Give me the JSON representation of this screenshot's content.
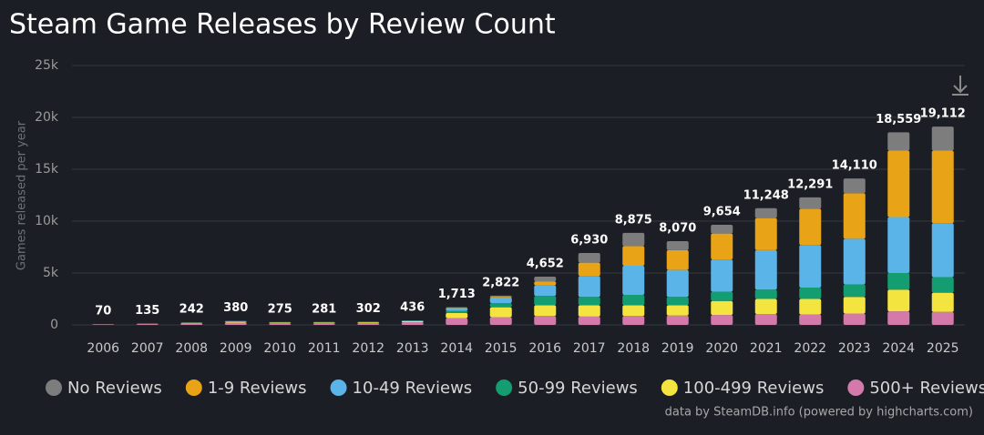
{
  "chart_data": {
    "type": "stacked-bar",
    "title": "Steam Game Releases by Review Count",
    "y_axis_label": "Games released per year",
    "credits": "data by SteamDB.info (powered by highcharts.com)",
    "categories": [
      "2006",
      "2007",
      "2008",
      "2009",
      "2010",
      "2011",
      "2012",
      "2013",
      "2014",
      "2015",
      "2016",
      "2017",
      "2018",
      "2019",
      "2020",
      "2021",
      "2022",
      "2023",
      "2024",
      "2025"
    ],
    "ylim": [
      0,
      25000
    ],
    "yticks": [
      0,
      {
        "value": 5000,
        "label": "5k"
      },
      {
        "value": 10000,
        "label": "10k"
      },
      {
        "value": 15000,
        "label": "15k"
      },
      {
        "value": 20000,
        "label": "20k"
      },
      {
        "value": 25000,
        "label": "25k"
      }
    ],
    "grid": true,
    "legend": "bottom",
    "series": [
      {
        "name": "No Reviews",
        "color": "#7d7d7d",
        "values": [
          2,
          2,
          3,
          3,
          3,
          3,
          3,
          3,
          33,
          72,
          452,
          930,
          1275,
          870,
          854,
          948,
          1091,
          1410,
          1759,
          2312
        ]
      },
      {
        "name": "1-9 Reviews",
        "color": "#e8a317",
        "values": [
          1,
          2,
          4,
          4,
          3,
          4,
          4,
          5,
          50,
          100,
          400,
          1300,
          1900,
          1900,
          2500,
          3100,
          3500,
          4400,
          6400,
          7000
        ]
      },
      {
        "name": "10-49 Reviews",
        "color": "#5ab4e8",
        "values": [
          4,
          8,
          20,
          28,
          21,
          21,
          20,
          38,
          280,
          550,
          1000,
          2000,
          2800,
          2600,
          3100,
          3800,
          4100,
          4400,
          5400,
          5200
        ]
      },
      {
        "name": "50-99 Reviews",
        "color": "#139d70",
        "values": [
          3,
          8,
          15,
          25,
          18,
          18,
          20,
          30,
          200,
          400,
          900,
          800,
          1000,
          800,
          900,
          900,
          1100,
          1200,
          1600,
          1500
        ]
      },
      {
        "name": "100-499 Reviews",
        "color": "#f4e43f",
        "values": [
          15,
          35,
          60,
          100,
          70,
          70,
          75,
          110,
          500,
          950,
          1050,
          1100,
          1050,
          1000,
          1350,
          1450,
          1500,
          1600,
          2100,
          1850
        ]
      },
      {
        "name": "500+ Reviews",
        "color": "#d47aab",
        "values": [
          45,
          80,
          140,
          220,
          160,
          165,
          180,
          250,
          650,
          750,
          850,
          800,
          850,
          900,
          950,
          1050,
          1000,
          1100,
          1300,
          1250
        ]
      }
    ],
    "totals": {
      "values": [
        70,
        135,
        242,
        380,
        275,
        281,
        302,
        436,
        1713,
        2822,
        4652,
        6930,
        8875,
        8070,
        9654,
        11248,
        12291,
        14110,
        18559,
        19112
      ],
      "value_labels": [
        "70",
        "135",
        "242",
        "380",
        "275",
        "281",
        "302",
        "436",
        "1,713",
        "2,822",
        "4,652",
        "6,930",
        "8,875",
        "8,070",
        "9,654",
        "11,248",
        "12,291",
        "14,110",
        "18,559",
        "19,112"
      ]
    }
  }
}
